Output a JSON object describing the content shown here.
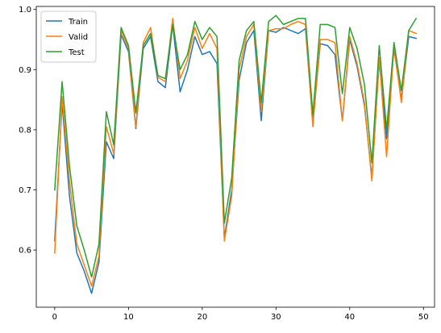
{
  "chart_data": {
    "type": "line",
    "title": "",
    "xlabel": "",
    "ylabel": "",
    "xlim": [
      -2.5,
      51.5
    ],
    "ylim": [
      0.505,
      1.005
    ],
    "x_ticks": [
      0,
      10,
      20,
      30,
      40,
      50
    ],
    "y_ticks": [
      0.6,
      0.7,
      0.8,
      0.9,
      1.0
    ],
    "y_tick_labels": [
      "0.6",
      "0.7",
      "0.8",
      "0.9",
      "1.0"
    ],
    "grid": false,
    "legend_position": "top-left",
    "x": [
      0,
      1,
      2,
      3,
      4,
      5,
      6,
      7,
      8,
      9,
      10,
      11,
      12,
      13,
      14,
      15,
      16,
      17,
      18,
      19,
      20,
      21,
      22,
      23,
      24,
      25,
      26,
      27,
      28,
      29,
      30,
      31,
      32,
      33,
      34,
      35,
      36,
      37,
      38,
      39,
      40,
      41,
      42,
      43,
      44,
      45,
      46,
      47,
      48,
      49
    ],
    "series": [
      {
        "name": "Train",
        "color": "#1f77b4",
        "values": [
          0.615,
          0.845,
          0.69,
          0.595,
          0.565,
          0.528,
          0.58,
          0.78,
          0.752,
          0.958,
          0.93,
          0.802,
          0.935,
          0.955,
          0.88,
          0.87,
          0.975,
          0.863,
          0.9,
          0.955,
          0.925,
          0.93,
          0.91,
          0.62,
          0.7,
          0.882,
          0.945,
          0.965,
          0.815,
          0.965,
          0.962,
          0.97,
          0.965,
          0.96,
          0.968,
          0.81,
          0.943,
          0.94,
          0.925,
          0.815,
          0.95,
          0.905,
          0.84,
          0.72,
          0.915,
          0.785,
          0.935,
          0.85,
          0.955,
          0.952
        ]
      },
      {
        "name": "Valid",
        "color": "#ff7f0e",
        "values": [
          0.595,
          0.855,
          0.715,
          0.61,
          0.575,
          0.54,
          0.59,
          0.805,
          0.76,
          0.965,
          0.935,
          0.805,
          0.945,
          0.97,
          0.887,
          0.88,
          0.985,
          0.885,
          0.915,
          0.97,
          0.935,
          0.96,
          0.935,
          0.615,
          0.69,
          0.9,
          0.955,
          0.975,
          0.83,
          0.965,
          0.968,
          0.968,
          0.975,
          0.98,
          0.975,
          0.805,
          0.95,
          0.95,
          0.945,
          0.815,
          0.955,
          0.91,
          0.845,
          0.715,
          0.92,
          0.755,
          0.94,
          0.845,
          0.965,
          0.96
        ]
      },
      {
        "name": "Test",
        "color": "#2ca02c",
        "values": [
          0.7,
          0.88,
          0.74,
          0.64,
          0.6,
          0.555,
          0.61,
          0.83,
          0.775,
          0.97,
          0.94,
          0.828,
          0.94,
          0.96,
          0.89,
          0.885,
          0.975,
          0.9,
          0.925,
          0.98,
          0.95,
          0.97,
          0.955,
          0.645,
          0.72,
          0.915,
          0.965,
          0.98,
          0.845,
          0.98,
          0.99,
          0.975,
          0.98,
          0.985,
          0.985,
          0.825,
          0.975,
          0.975,
          0.97,
          0.86,
          0.97,
          0.935,
          0.875,
          0.745,
          0.94,
          0.8,
          0.945,
          0.865,
          0.965,
          0.985
        ]
      }
    ]
  }
}
